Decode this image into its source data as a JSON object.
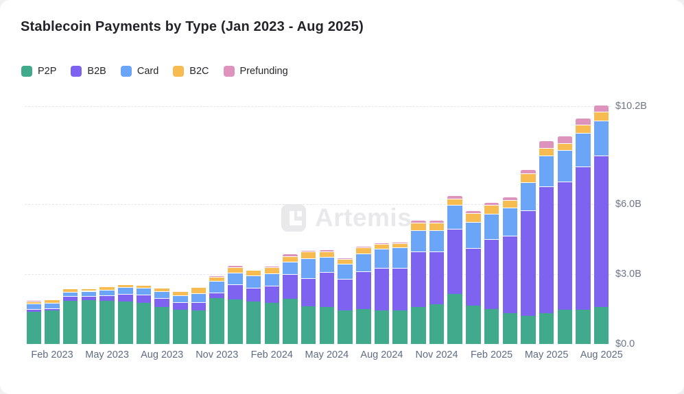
{
  "header": {
    "title": "Stablecoin Payments by Type (Jan 2023 - Aug 2025)"
  },
  "watermark": {
    "text": "Artemis",
    "logo_icon": "artemis-logo-icon",
    "color": "#e9e9ec"
  },
  "chart_data": {
    "type": "bar",
    "stacked": true,
    "title": "Stablecoin Payments by Type (Jan 2023 - Aug 2025)",
    "unit": "USD billions",
    "grid": "horizontal-dashed",
    "legend_position": "top-left",
    "y_axis_side": "right",
    "ylim": [
      0,
      10.2
    ],
    "y_ticks": [
      {
        "value": 0,
        "label": "$0.0"
      },
      {
        "value": 3,
        "label": "$3.0B"
      },
      {
        "value": 6,
        "label": "$6.0B"
      },
      {
        "value": 10.2,
        "label": "$10.2B"
      }
    ],
    "categories": [
      "Jan 2023",
      "Feb 2023",
      "Mar 2023",
      "Apr 2023",
      "May 2023",
      "Jun 2023",
      "Jul 2023",
      "Aug 2023",
      "Sep 2023",
      "Oct 2023",
      "Nov 2023",
      "Dec 2023",
      "Jan 2024",
      "Feb 2024",
      "Mar 2024",
      "Apr 2024",
      "May 2024",
      "Jun 2024",
      "Jul 2024",
      "Aug 2024",
      "Sep 2024",
      "Oct 2024",
      "Nov 2024",
      "Dec 2024",
      "Jan 2025",
      "Feb 2025",
      "Mar 2025",
      "Apr 2025",
      "May 2025",
      "Jun 2025",
      "Jul 2025",
      "Aug 2025"
    ],
    "x_tick_labels": [
      "Feb 2023",
      "May 2023",
      "Aug 2023",
      "Nov 2023",
      "Feb 2024",
      "May 2024",
      "Aug 2024",
      "Nov 2024",
      "Feb 2025",
      "May 2025",
      "Aug 2025"
    ],
    "series": [
      {
        "name": "P2P",
        "color": "#41aa8d",
        "values": [
          1.38,
          1.45,
          1.84,
          1.89,
          1.84,
          1.82,
          1.77,
          1.58,
          1.48,
          1.43,
          1.97,
          1.92,
          1.82,
          1.77,
          1.94,
          1.61,
          1.58,
          1.45,
          1.5,
          1.45,
          1.43,
          1.58,
          1.7,
          2.15,
          1.65,
          1.5,
          1.31,
          1.21,
          1.31,
          1.48,
          1.46,
          1.6
        ]
      },
      {
        "name": "B2B",
        "color": "#7e63f1",
        "values": [
          0.12,
          0.07,
          0.21,
          0.18,
          0.24,
          0.32,
          0.34,
          0.39,
          0.32,
          0.37,
          0.23,
          0.64,
          0.59,
          0.72,
          1.06,
          1.21,
          1.52,
          1.33,
          1.63,
          1.82,
          1.83,
          2.38,
          2.26,
          2.79,
          2.48,
          2.99,
          3.35,
          4.53,
          5.46,
          5.49,
          6.16,
          6.48
        ]
      },
      {
        "name": "Card",
        "color": "#6ba5f7",
        "values": [
          0.23,
          0.24,
          0.19,
          0.21,
          0.24,
          0.29,
          0.29,
          0.29,
          0.29,
          0.39,
          0.51,
          0.49,
          0.54,
          0.54,
          0.54,
          0.86,
          0.64,
          0.65,
          0.76,
          0.81,
          0.88,
          0.93,
          0.92,
          1.02,
          1.1,
          1.11,
          1.19,
          1.2,
          1.31,
          1.35,
          1.43,
          1.51
        ]
      },
      {
        "name": "B2C",
        "color": "#f6bb51",
        "values": [
          0.1,
          0.14,
          0.13,
          0.11,
          0.14,
          0.14,
          0.14,
          0.15,
          0.17,
          0.24,
          0.18,
          0.25,
          0.22,
          0.26,
          0.23,
          0.28,
          0.23,
          0.23,
          0.25,
          0.2,
          0.18,
          0.32,
          0.32,
          0.29,
          0.4,
          0.36,
          0.34,
          0.37,
          0.33,
          0.31,
          0.36,
          0.39
        ]
      },
      {
        "name": "Prefunding",
        "color": "#de93bc",
        "values": [
          0.04,
          0.03,
          0.02,
          0.03,
          0.02,
          0.03,
          0.03,
          0.03,
          0.03,
          0.03,
          0.04,
          0.07,
          0.05,
          0.05,
          0.1,
          0.07,
          0.09,
          0.05,
          0.07,
          0.08,
          0.07,
          0.12,
          0.12,
          0.13,
          0.12,
          0.13,
          0.13,
          0.18,
          0.32,
          0.32,
          0.29,
          0.29
        ]
      }
    ]
  }
}
